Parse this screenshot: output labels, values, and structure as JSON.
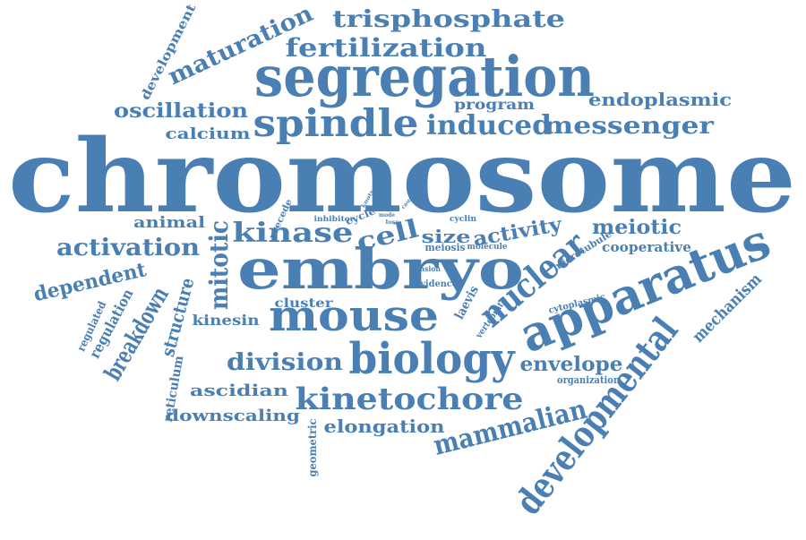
{
  "word_cloud": {
    "color": "#4a7fb3",
    "words": [
      "chromosome",
      "segregation",
      "spindle",
      "embryo",
      "apparatus",
      "mouse",
      "biology",
      "developmental",
      "kinetochore",
      "nuclear",
      "trisphosphate",
      "fertilization",
      "maturation",
      "oscillation",
      "induced",
      "messenger",
      "endoplasmic",
      "program",
      "calcium",
      "development",
      "kinase",
      "cell",
      "size",
      "activity",
      "meiotic",
      "activation",
      "animal",
      "mitotic",
      "dependent",
      "breakdown",
      "structure",
      "kinesin",
      "division",
      "envelope",
      "mammalian",
      "elongation",
      "downscaling",
      "ascidian",
      "mechanism",
      "cooperative",
      "cluster",
      "regulation",
      "regulated",
      "reticulum",
      "geometric",
      "microtubule",
      "cytoplasmic",
      "organization",
      "laevis",
      "vertebrate",
      "evidence",
      "tension",
      "meiosis",
      "molecule",
      "cyclin",
      "inhibitor",
      "cycle",
      "precede",
      "mode",
      "loss",
      "egg",
      "knots",
      "cause"
    ]
  }
}
